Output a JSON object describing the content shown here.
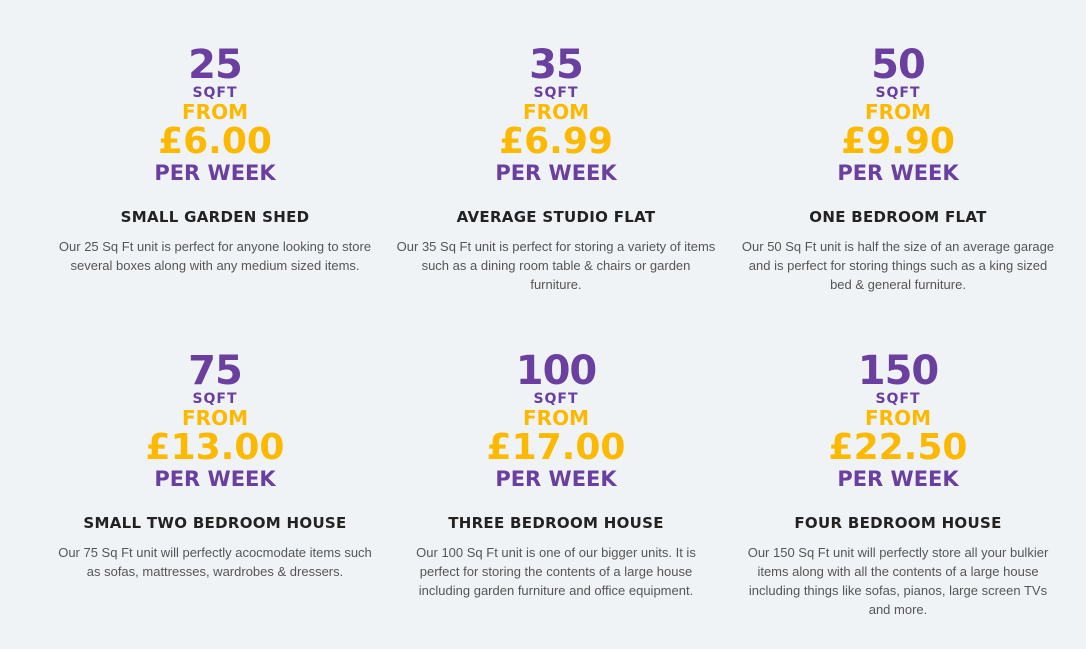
{
  "units": [
    {
      "size": "25",
      "unit": "SQFT",
      "from": "FROM",
      "price": "£6.00",
      "period": "PER WEEK",
      "title": "SMALL GARDEN SHED",
      "description": "Our 25 Sq Ft unit is perfect for anyone looking to store several boxes along with any medium sized items."
    },
    {
      "size": "35",
      "unit": "SQFT",
      "from": "FROM",
      "price": "£6.99",
      "period": "PER WEEK",
      "title": "AVERAGE STUDIO FLAT",
      "description": "Our 35 Sq Ft unit is perfect for storing a variety of items such as a dining room table & chairs or garden furniture."
    },
    {
      "size": "50",
      "unit": "SQFT",
      "from": "FROM",
      "price": "£9.90",
      "period": "PER WEEK",
      "title": "ONE BEDROOM FLAT",
      "description": "Our 50 Sq Ft unit is half the size of an average garage and is perfect for storing things such as a king sized bed & general furniture."
    },
    {
      "size": "75",
      "unit": "SQFT",
      "from": "FROM",
      "price": "£13.00",
      "period": "PER WEEK",
      "title": "SMALL TWO BEDROOM HOUSE",
      "description": "Our 75 Sq Ft unit will perfectly acocmodate items such as sofas, mattresses, wardrobes & dressers."
    },
    {
      "size": "100",
      "unit": "SQFT",
      "from": "FROM",
      "price": "£17.00",
      "period": "PER WEEK",
      "title": "THREE BEDROOM HOUSE",
      "description": "Our 100 Sq Ft unit is one of our bigger units. It is perfect for storing the contents of a large house including garden furniture and office equipment."
    },
    {
      "size": "150",
      "unit": "SQFT",
      "from": "FROM",
      "price": "£22.50",
      "period": "PER WEEK",
      "title": "FOUR BEDROOM HOUSE",
      "description": "Our 150 Sq Ft unit will perfectly store all your bulkier items along with all the contents of a large house including things like sofas, pianos, large screen TVs and more."
    }
  ],
  "colors": {
    "purple": "#6a3fa0",
    "yellow": "#fcb900",
    "background": "#f0f3f6"
  }
}
